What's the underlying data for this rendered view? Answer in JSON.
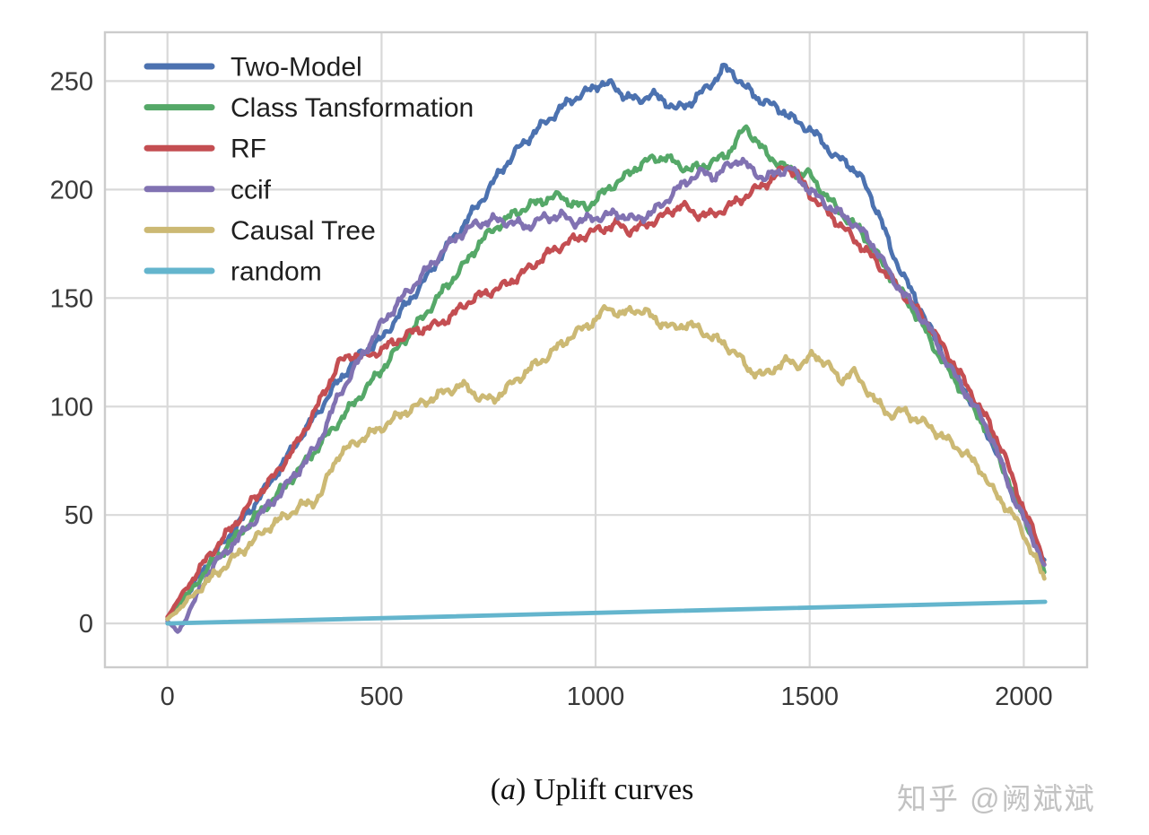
{
  "caption": {
    "open": "(",
    "index": "a",
    "rest": ") Uplift curves"
  },
  "watermark": {
    "text": "知乎 @阙斌斌"
  },
  "chart_data": {
    "type": "line",
    "title": "",
    "xlabel": "",
    "ylabel": "",
    "grid": true,
    "legend_position": "upper-left",
    "x_ticks": [
      0,
      500,
      1000,
      1500,
      2000
    ],
    "y_ticks": [
      0,
      50,
      100,
      150,
      200,
      250
    ],
    "xlim": [
      -146,
      2148
    ],
    "ylim": [
      -20.2,
      272.5
    ],
    "colors": {
      "grid": "#d9d9d9",
      "spine": "#cccccc",
      "tick_text": "#383838",
      "legend_text": "#1f1f1f"
    },
    "series": [
      {
        "name": "Two-Model",
        "color": "#4C72B0",
        "noisy": true,
        "points": [
          [
            0,
            2
          ],
          [
            50,
            14
          ],
          [
            100,
            30
          ],
          [
            150,
            42
          ],
          [
            200,
            54
          ],
          [
            250,
            68
          ],
          [
            300,
            83
          ],
          [
            350,
            97
          ],
          [
            400,
            112
          ],
          [
            450,
            124
          ],
          [
            500,
            131
          ],
          [
            550,
            145
          ],
          [
            600,
            158
          ],
          [
            640,
            170
          ],
          [
            670,
            178
          ],
          [
            700,
            186
          ],
          [
            740,
            197
          ],
          [
            780,
            209
          ],
          [
            820,
            219
          ],
          [
            860,
            227
          ],
          [
            900,
            234
          ],
          [
            940,
            241
          ],
          [
            980,
            245
          ],
          [
            1010,
            249
          ],
          [
            1040,
            248
          ],
          [
            1070,
            243
          ],
          [
            1100,
            241
          ],
          [
            1130,
            244
          ],
          [
            1160,
            241
          ],
          [
            1190,
            237
          ],
          [
            1220,
            240
          ],
          [
            1250,
            245
          ],
          [
            1280,
            251
          ],
          [
            1300,
            256
          ],
          [
            1320,
            254
          ],
          [
            1350,
            247
          ],
          [
            1380,
            242
          ],
          [
            1410,
            239
          ],
          [
            1440,
            236
          ],
          [
            1470,
            231
          ],
          [
            1500,
            228
          ],
          [
            1530,
            222
          ],
          [
            1560,
            215
          ],
          [
            1590,
            212
          ],
          [
            1615,
            207
          ],
          [
            1640,
            198
          ],
          [
            1665,
            187
          ],
          [
            1690,
            172
          ],
          [
            1715,
            162
          ],
          [
            1740,
            152
          ],
          [
            1765,
            143
          ],
          [
            1790,
            132
          ],
          [
            1815,
            123
          ],
          [
            1840,
            115
          ],
          [
            1865,
            107
          ],
          [
            1890,
            97
          ],
          [
            1915,
            88
          ],
          [
            1940,
            77
          ],
          [
            1965,
            64
          ],
          [
            1990,
            53
          ],
          [
            2015,
            43
          ],
          [
            2035,
            34
          ],
          [
            2050,
            26
          ]
        ]
      },
      {
        "name": "Class Tansformation",
        "color": "#55A868",
        "noisy": true,
        "points": [
          [
            0,
            2
          ],
          [
            50,
            14
          ],
          [
            100,
            27
          ],
          [
            150,
            38
          ],
          [
            200,
            48
          ],
          [
            250,
            58
          ],
          [
            300,
            69
          ],
          [
            350,
            81
          ],
          [
            400,
            93
          ],
          [
            450,
            105
          ],
          [
            500,
            117
          ],
          [
            550,
            130
          ],
          [
            600,
            142
          ],
          [
            650,
            155
          ],
          [
            700,
            167
          ],
          [
            730,
            176
          ],
          [
            770,
            183
          ],
          [
            810,
            189
          ],
          [
            850,
            193
          ],
          [
            890,
            196
          ],
          [
            920,
            197
          ],
          [
            950,
            193
          ],
          [
            980,
            192
          ],
          [
            1010,
            197
          ],
          [
            1040,
            202
          ],
          [
            1070,
            206
          ],
          [
            1100,
            211
          ],
          [
            1130,
            214
          ],
          [
            1160,
            215
          ],
          [
            1190,
            212
          ],
          [
            1220,
            209
          ],
          [
            1250,
            211
          ],
          [
            1280,
            213
          ],
          [
            1310,
            217
          ],
          [
            1335,
            224
          ],
          [
            1350,
            229
          ],
          [
            1370,
            224
          ],
          [
            1400,
            216
          ],
          [
            1430,
            212
          ],
          [
            1460,
            208
          ],
          [
            1500,
            207
          ],
          [
            1530,
            199
          ],
          [
            1560,
            192
          ],
          [
            1590,
            186
          ],
          [
            1620,
            181
          ],
          [
            1650,
            172
          ],
          [
            1680,
            163
          ],
          [
            1710,
            154
          ],
          [
            1740,
            145
          ],
          [
            1770,
            135
          ],
          [
            1800,
            124
          ],
          [
            1830,
            115
          ],
          [
            1860,
            106
          ],
          [
            1890,
            97
          ],
          [
            1920,
            87
          ],
          [
            1950,
            73
          ],
          [
            1980,
            58
          ],
          [
            2010,
            45
          ],
          [
            2030,
            35
          ],
          [
            2050,
            22
          ]
        ]
      },
      {
        "name": "RF",
        "color": "#C44E52",
        "noisy": true,
        "points": [
          [
            0,
            3
          ],
          [
            50,
            18
          ],
          [
            100,
            32
          ],
          [
            150,
            44
          ],
          [
            200,
            57
          ],
          [
            250,
            68
          ],
          [
            300,
            82
          ],
          [
            350,
            100
          ],
          [
            400,
            120
          ],
          [
            430,
            124
          ],
          [
            460,
            123
          ],
          [
            500,
            126
          ],
          [
            540,
            131
          ],
          [
            580,
            135
          ],
          [
            620,
            137
          ],
          [
            660,
            141
          ],
          [
            700,
            148
          ],
          [
            740,
            152
          ],
          [
            780,
            155
          ],
          [
            820,
            160
          ],
          [
            860,
            166
          ],
          [
            900,
            172
          ],
          [
            950,
            177
          ],
          [
            1000,
            181
          ],
          [
            1050,
            184
          ],
          [
            1080,
            181
          ],
          [
            1120,
            184
          ],
          [
            1160,
            188
          ],
          [
            1200,
            193
          ],
          [
            1230,
            189
          ],
          [
            1270,
            188
          ],
          [
            1310,
            192
          ],
          [
            1350,
            197
          ],
          [
            1390,
            202
          ],
          [
            1420,
            206
          ],
          [
            1445,
            211
          ],
          [
            1470,
            207
          ],
          [
            1500,
            198
          ],
          [
            1530,
            192
          ],
          [
            1560,
            186
          ],
          [
            1590,
            180
          ],
          [
            1620,
            174
          ],
          [
            1650,
            168
          ],
          [
            1680,
            161
          ],
          [
            1710,
            154
          ],
          [
            1740,
            147
          ],
          [
            1770,
            140
          ],
          [
            1800,
            131
          ],
          [
            1830,
            122
          ],
          [
            1860,
            112
          ],
          [
            1890,
            102
          ],
          [
            1920,
            92
          ],
          [
            1950,
            80
          ],
          [
            1975,
            66
          ],
          [
            2000,
            53
          ],
          [
            2025,
            41
          ],
          [
            2050,
            28
          ]
        ]
      },
      {
        "name": "ccif",
        "color": "#8172B2",
        "noisy": true,
        "points": [
          [
            0,
            1
          ],
          [
            25,
            -4
          ],
          [
            55,
            7
          ],
          [
            100,
            25
          ],
          [
            150,
            36
          ],
          [
            200,
            47
          ],
          [
            250,
            57
          ],
          [
            300,
            69
          ],
          [
            350,
            82
          ],
          [
            400,
            105
          ],
          [
            450,
            122
          ],
          [
            500,
            138
          ],
          [
            540,
            148
          ],
          [
            580,
            157
          ],
          [
            615,
            165
          ],
          [
            645,
            172
          ],
          [
            680,
            179
          ],
          [
            720,
            184
          ],
          [
            760,
            186
          ],
          [
            800,
            185
          ],
          [
            840,
            183
          ],
          [
            880,
            187
          ],
          [
            920,
            188
          ],
          [
            950,
            185
          ],
          [
            1000,
            187
          ],
          [
            1050,
            189
          ],
          [
            1090,
            186
          ],
          [
            1130,
            189
          ],
          [
            1160,
            194
          ],
          [
            1190,
            200
          ],
          [
            1220,
            205
          ],
          [
            1250,
            208
          ],
          [
            1280,
            206
          ],
          [
            1310,
            211
          ],
          [
            1335,
            214
          ],
          [
            1365,
            209
          ],
          [
            1395,
            205
          ],
          [
            1425,
            208
          ],
          [
            1455,
            210
          ],
          [
            1480,
            204
          ],
          [
            1510,
            198
          ],
          [
            1540,
            193
          ],
          [
            1570,
            189
          ],
          [
            1600,
            185
          ],
          [
            1630,
            179
          ],
          [
            1660,
            171
          ],
          [
            1690,
            160
          ],
          [
            1720,
            152
          ],
          [
            1750,
            144
          ],
          [
            1780,
            136
          ],
          [
            1810,
            124
          ],
          [
            1840,
            114
          ],
          [
            1870,
            105
          ],
          [
            1900,
            95
          ],
          [
            1925,
            86
          ],
          [
            1950,
            72
          ],
          [
            1975,
            59
          ],
          [
            2000,
            48
          ],
          [
            2025,
            38
          ],
          [
            2050,
            25
          ]
        ]
      },
      {
        "name": "Causal Tree",
        "color": "#CCB974",
        "noisy": true,
        "points": [
          [
            0,
            2
          ],
          [
            40,
            9
          ],
          [
            80,
            17
          ],
          [
            120,
            24
          ],
          [
            160,
            31
          ],
          [
            200,
            38
          ],
          [
            240,
            45
          ],
          [
            280,
            50
          ],
          [
            310,
            54
          ],
          [
            340,
            56
          ],
          [
            360,
            60
          ],
          [
            380,
            70
          ],
          [
            400,
            78
          ],
          [
            430,
            82
          ],
          [
            460,
            86
          ],
          [
            490,
            89
          ],
          [
            520,
            93
          ],
          [
            550,
            97
          ],
          [
            580,
            100
          ],
          [
            610,
            103
          ],
          [
            640,
            106
          ],
          [
            665,
            108
          ],
          [
            685,
            110
          ],
          [
            705,
            108
          ],
          [
            730,
            104
          ],
          [
            760,
            103
          ],
          [
            790,
            108
          ],
          [
            820,
            113
          ],
          [
            850,
            118
          ],
          [
            880,
            122
          ],
          [
            910,
            127
          ],
          [
            940,
            132
          ],
          [
            970,
            136
          ],
          [
            1000,
            140
          ],
          [
            1030,
            146
          ],
          [
            1060,
            142
          ],
          [
            1090,
            145
          ],
          [
            1120,
            143
          ],
          [
            1150,
            139
          ],
          [
            1180,
            136
          ],
          [
            1210,
            138
          ],
          [
            1240,
            136
          ],
          [
            1270,
            132
          ],
          [
            1300,
            129
          ],
          [
            1330,
            124
          ],
          [
            1360,
            117
          ],
          [
            1390,
            114
          ],
          [
            1420,
            118
          ],
          [
            1450,
            121
          ],
          [
            1480,
            119
          ],
          [
            1510,
            124
          ],
          [
            1540,
            120
          ],
          [
            1570,
            112
          ],
          [
            1600,
            116
          ],
          [
            1630,
            109
          ],
          [
            1660,
            101
          ],
          [
            1690,
            96
          ],
          [
            1720,
            98
          ],
          [
            1750,
            94
          ],
          [
            1780,
            91
          ],
          [
            1810,
            86
          ],
          [
            1840,
            82
          ],
          [
            1870,
            77
          ],
          [
            1900,
            71
          ],
          [
            1925,
            62
          ],
          [
            1950,
            56
          ],
          [
            1975,
            50
          ],
          [
            2000,
            41
          ],
          [
            2025,
            31
          ],
          [
            2050,
            19
          ]
        ]
      },
      {
        "name": "random",
        "color": "#64B5CD",
        "noisy": false,
        "points": [
          [
            0,
            0
          ],
          [
            2050,
            10
          ]
        ]
      }
    ]
  }
}
